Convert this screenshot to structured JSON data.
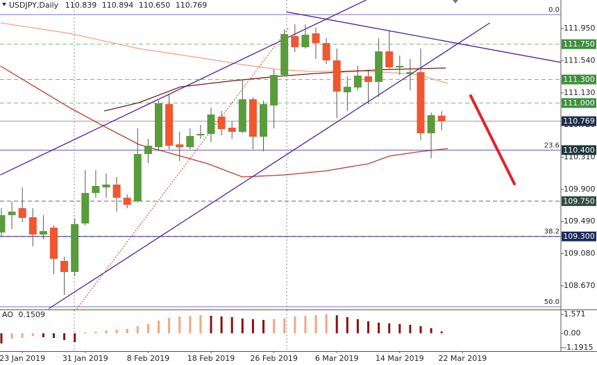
{
  "chart_data": {
    "type": "candlestick",
    "title": "USDJPY,Daily",
    "header_values": [
      110.839,
      110.894,
      {
        "value": 110.65,
        "label": "110.650"
      },
      110.769
    ],
    "categories": [
      null,
      null,
      "23 Jan 2019",
      null,
      null,
      null,
      null,
      null,
      "31 Jan 2019",
      null,
      null,
      null,
      null,
      null,
      "8 Feb 2019",
      null,
      null,
      null,
      null,
      null,
      "18 Feb 2019",
      null,
      null,
      null,
      null,
      null,
      "26 Feb 2019",
      null,
      null,
      null,
      null,
      null,
      "6 Mar 2019",
      null,
      null,
      null,
      null,
      null,
      "14 Mar 2019",
      null,
      null,
      null,
      null,
      null,
      "22 Mar 2019"
    ],
    "open": [
      109.35,
      109.571,
      109.66,
      109.545,
      109.324,
      109.412,
      108.988,
      108.847,
      109.465,
      109.854,
      109.925,
      109.961,
      109.793,
      109.748,
      110.35,
      110.438,
      110.986,
      110.473,
      110.438,
      110.588,
      110.606,
      110.827,
      110.686,
      110.633,
      111.048,
      110.571,
      110.969,
      111.358,
      111.853,
      111.711,
      111.888,
      111.764,
      111.543,
      111.137,
      111.198,
      111.34,
      111.269,
      111.658,
      111.455,
      111.375,
      111.393,
      110.615,
      110.839,
      null,
      null
    ],
    "high": [
      109.66,
      109.748,
      109.925,
      109.66,
      109.571,
      109.439,
      109.041,
      109.527,
      110.146,
      110.146,
      110.102,
      110.058,
      109.837,
      110.677,
      110.544,
      111.03,
      111.119,
      110.633,
      110.677,
      110.721,
      110.942,
      110.898,
      110.765,
      111.296,
      111.075,
      111.03,
      111.428,
      111.941,
      112.003,
      112.003,
      111.959,
      111.826,
      111.694,
      111.34,
      111.473,
      111.428,
      111.826,
      111.915,
      111.605,
      111.561,
      111.694,
      110.88,
      110.894,
      null,
      null
    ],
    "low": [
      109.306,
      109.395,
      109.483,
      109.174,
      109.262,
      108.82,
      108.555,
      108.793,
      109.439,
      109.793,
      109.793,
      109.616,
      109.66,
      109.731,
      110.235,
      110.385,
      110.412,
      110.261,
      110.412,
      110.544,
      110.5,
      110.588,
      110.544,
      110.615,
      110.412,
      110.385,
      110.677,
      111.34,
      111.649,
      111.694,
      111.561,
      111.499,
      110.809,
      110.898,
      111.163,
      110.986,
      111.075,
      111.428,
      111.358,
      111.163,
      110.526,
      110.297,
      110.65,
      null,
      null
    ],
    "close": [
      109.571,
      109.616,
      109.536,
      109.324,
      109.368,
      109.015,
      108.847,
      109.457,
      109.854,
      109.943,
      109.961,
      109.793,
      109.704,
      110.35,
      110.456,
      110.995,
      110.456,
      110.438,
      110.58,
      110.606,
      110.854,
      110.668,
      110.633,
      111.048,
      110.571,
      110.986,
      111.358,
      111.879,
      111.711,
      111.87,
      111.764,
      111.543,
      111.145,
      111.207,
      111.349,
      111.269,
      111.658,
      111.455,
      111.473,
      111.393,
      110.615,
      110.845,
      110.769,
      null,
      null
    ],
    "up_color": "#5a9b3c",
    "down_color": "#f0562f",
    "wick_color": "#555555",
    "ylim": [
      108.378,
      112.313
    ],
    "yticks": [
      {
        "value": 111.95,
        "label": "111.950"
      },
      {
        "value": 111.54,
        "label": "111.540"
      },
      {
        "value": 111.13,
        "label": "111.130"
      },
      {
        "value": 110.72,
        "label": "110.720"
      },
      {
        "value": 110.31,
        "label": "110.310"
      },
      {
        "value": 109.9,
        "label": "109.900"
      },
      {
        "value": 109.49,
        "label": "109.490"
      },
      {
        "value": 109.08,
        "label": "109.080"
      },
      {
        "value": 108.67,
        "label": "108.670"
      }
    ],
    "levels": [
      {
        "value": 111.75,
        "label": "111.750",
        "color": "#3f8f3f",
        "line_color": "#7cb87c",
        "dashed": true
      },
      {
        "value": 111.3,
        "label": "111.300",
        "color": "#3f8f3f",
        "line_color": "#7cb87c",
        "dashed": true
      },
      {
        "value": 111.0,
        "label": "111.000",
        "color": "#3f8f3f",
        "line_color": "#7cb87c",
        "dashed": true
      },
      {
        "value": 110.769,
        "color": "#1e2f4a",
        "line_color": "#9a9a9a",
        "dashed": false
      },
      {
        "value": 110.4,
        "label": "110.400",
        "color": "#1f3838",
        "line_color": "#7b6fd0",
        "dashed": false
      },
      {
        "value": 109.75,
        "label": "109.750",
        "color": "#2f4a40",
        "line_color": "#666666",
        "dashed": true
      },
      {
        "value": 109.3,
        "label": "109.300",
        "color": "#1c2a5c",
        "line_color": "#3d3a9e",
        "dashed": true
      }
    ],
    "fib": [
      {
        "level": "0.0",
        "price": 112.127,
        "color": "#7b6fd0"
      },
      {
        "level": "23.6",
        "price": 110.4,
        "color": "#7b6fd0"
      },
      {
        "level": "38.2",
        "price": 109.3,
        "color": "#3d3a9e"
      },
      {
        "level": "50.0",
        "price": 108.405,
        "color": "#7b6fd0"
      }
    ],
    "overlays": [
      {
        "color": "#f4a27a",
        "style": "solid",
        "x": [
          -0.1,
          6.5,
          13.1,
          19.7,
          23.0,
          26.4,
          29.7,
          34.3,
          39.6,
          42.6
        ],
        "values": [
          112.021,
          111.888,
          111.694,
          111.561,
          111.49,
          111.428,
          111.402,
          111.411,
          111.366,
          111.251
        ]
      },
      {
        "color": "#7a1a12",
        "style": "solid",
        "x": [
          9.8,
          13.1,
          17.1,
          21.7,
          26.4,
          29.7,
          34.3,
          37.0,
          42.4
        ],
        "values": [
          110.898,
          111.004,
          111.207,
          111.278,
          111.34,
          111.375,
          111.411,
          111.428,
          111.446
        ]
      },
      {
        "color": "#c0392b",
        "style": "solid",
        "x": [
          -0.1,
          3.2,
          6.5,
          9.8,
          13.1,
          16.4,
          19.7,
          23.0,
          27.0,
          31.0,
          35.0,
          37.0,
          39.6,
          42.6
        ],
        "values": [
          111.473,
          111.207,
          110.942,
          110.703,
          110.473,
          110.35,
          110.226,
          110.058,
          110.084,
          110.137,
          110.226,
          110.323,
          110.376,
          110.42
        ]
      },
      {
        "color": "#4b1f9e",
        "style": "solid",
        "x": [
          -0.1,
          34.8
        ],
        "values": [
          110.084,
          112.313
        ]
      },
      {
        "color": "#4b1f9e",
        "style": "solid",
        "x": [
          4.5,
          46.6
        ],
        "values": [
          108.378,
          112.021
        ]
      },
      {
        "color": "#4b1f9e",
        "style": "solid",
        "x": [
          27.2,
          53.4
        ],
        "values": [
          112.162,
          111.517
        ]
      },
      {
        "color": "#e0604a",
        "style": "dotted",
        "x": [
          7.2,
          27.4
        ],
        "values": [
          108.378,
          111.959
        ]
      }
    ],
    "ao": {
      "type": "bar",
      "title": "AO",
      "value": 0.1509,
      "values": [
        -0.846,
        -0.443,
        -0.386,
        -0.213,
        -0.328,
        -0.386,
        -0.558,
        -0.731,
        0.075,
        0.132,
        0.247,
        0.305,
        0.363,
        0.593,
        0.765,
        1.053,
        1.283,
        1.398,
        1.44,
        1.5,
        1.456,
        1.398,
        1.341,
        1.226,
        1.168,
        1.111,
        1.168,
        1.226,
        1.398,
        1.45,
        1.52,
        1.571,
        1.5,
        1.341,
        1.168,
        0.996,
        0.881,
        0.823,
        0.765,
        0.708,
        0.593,
        0.42,
        0.1509,
        null,
        null
      ],
      "up_color": "#f4a582",
      "down_color": "#8b0f0f",
      "ylim": [
        -1.479,
        1.916
      ],
      "yticks": [
        1.571,
        {
          "value": 0,
          "label": "0.00"
        },
        -1.1915
      ]
    }
  }
}
